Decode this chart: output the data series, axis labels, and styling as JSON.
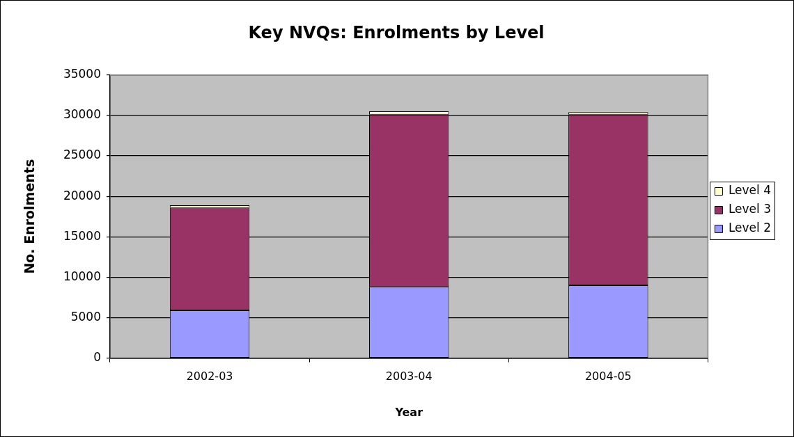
{
  "chart_data": {
    "type": "bar",
    "title": "Key NVQs: Enrolments by Level",
    "xlabel": "Year",
    "ylabel": "No. Enrolments",
    "categories": [
      "2002-03",
      "2003-04",
      "2004-05"
    ],
    "series": [
      {
        "name": "Level 2",
        "color": "#9999ff",
        "values": [
          5900,
          8800,
          9000
        ]
      },
      {
        "name": "Level 3",
        "color": "#993366",
        "values": [
          12700,
          21300,
          21100
        ]
      },
      {
        "name": "Level 4",
        "color": "#ffffcc",
        "values": [
          300,
          400,
          300
        ]
      }
    ],
    "stacked": true,
    "ylim": [
      0,
      35000
    ],
    "yticks": [
      0,
      5000,
      10000,
      15000,
      20000,
      25000,
      30000,
      35000
    ],
    "grid": "y",
    "legend": "right"
  }
}
